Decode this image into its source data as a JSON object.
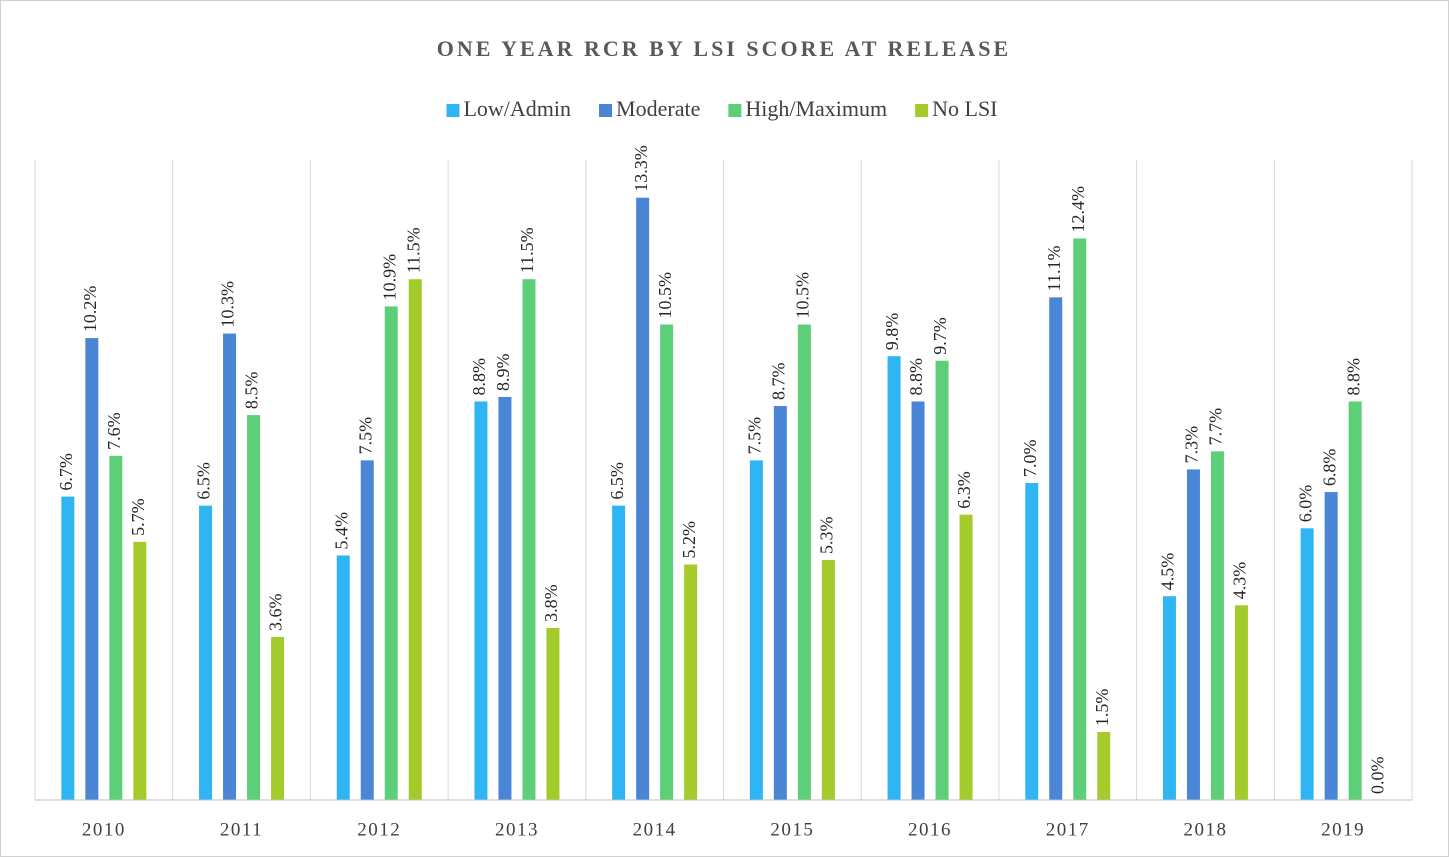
{
  "chart_data": {
    "type": "bar",
    "title": "ONE YEAR RCR BY LSI SCORE AT RELEASE",
    "categories": [
      "2010",
      "2011",
      "2012",
      "2013",
      "2014",
      "2015",
      "2016",
      "2017",
      "2018",
      "2019"
    ],
    "series": [
      {
        "name": "Low/Admin",
        "color": "#2fb5f3",
        "values": [
          6.7,
          6.5,
          5.4,
          8.8,
          6.5,
          7.5,
          9.8,
          7.0,
          4.5,
          6.0
        ],
        "value_labels": [
          "6.7%",
          "6.5%",
          "5.4%",
          "8.8%",
          "6.5%",
          "7.5%",
          "9.8%",
          "7.0%",
          "4.5%",
          "6.0%"
        ]
      },
      {
        "name": "Moderate",
        "color": "#4a85d6",
        "values": [
          10.2,
          10.3,
          7.5,
          8.9,
          13.3,
          8.7,
          8.8,
          11.1,
          7.3,
          6.8
        ],
        "value_labels": [
          "10.2%",
          "10.3%",
          "7.5%",
          "8.9%",
          "13.3%",
          "8.7%",
          "8.8%",
          "11.1%",
          "7.3%",
          "6.8%"
        ]
      },
      {
        "name": "High/Maximum",
        "color": "#5ccf78",
        "values": [
          7.6,
          8.5,
          10.9,
          11.5,
          10.5,
          10.5,
          9.7,
          12.4,
          7.7,
          8.8
        ],
        "value_labels": [
          "7.6%",
          "8.5%",
          "10.9%",
          "11.5%",
          "10.5%",
          "10.5%",
          "9.7%",
          "12.4%",
          "7.7%",
          "8.8%"
        ]
      },
      {
        "name": "No LSI",
        "color": "#a3cb2b",
        "values": [
          5.7,
          3.6,
          11.5,
          3.8,
          5.2,
          5.3,
          6.3,
          1.5,
          4.3,
          0.0
        ],
        "value_labels": [
          "5.7%",
          "3.6%",
          "11.5%",
          "3.8%",
          "5.2%",
          "5.3%",
          "6.3%",
          "1.5%",
          "4.3%",
          "0.0%"
        ]
      }
    ],
    "ylim": [
      0,
      14
    ],
    "legend": "top"
  }
}
